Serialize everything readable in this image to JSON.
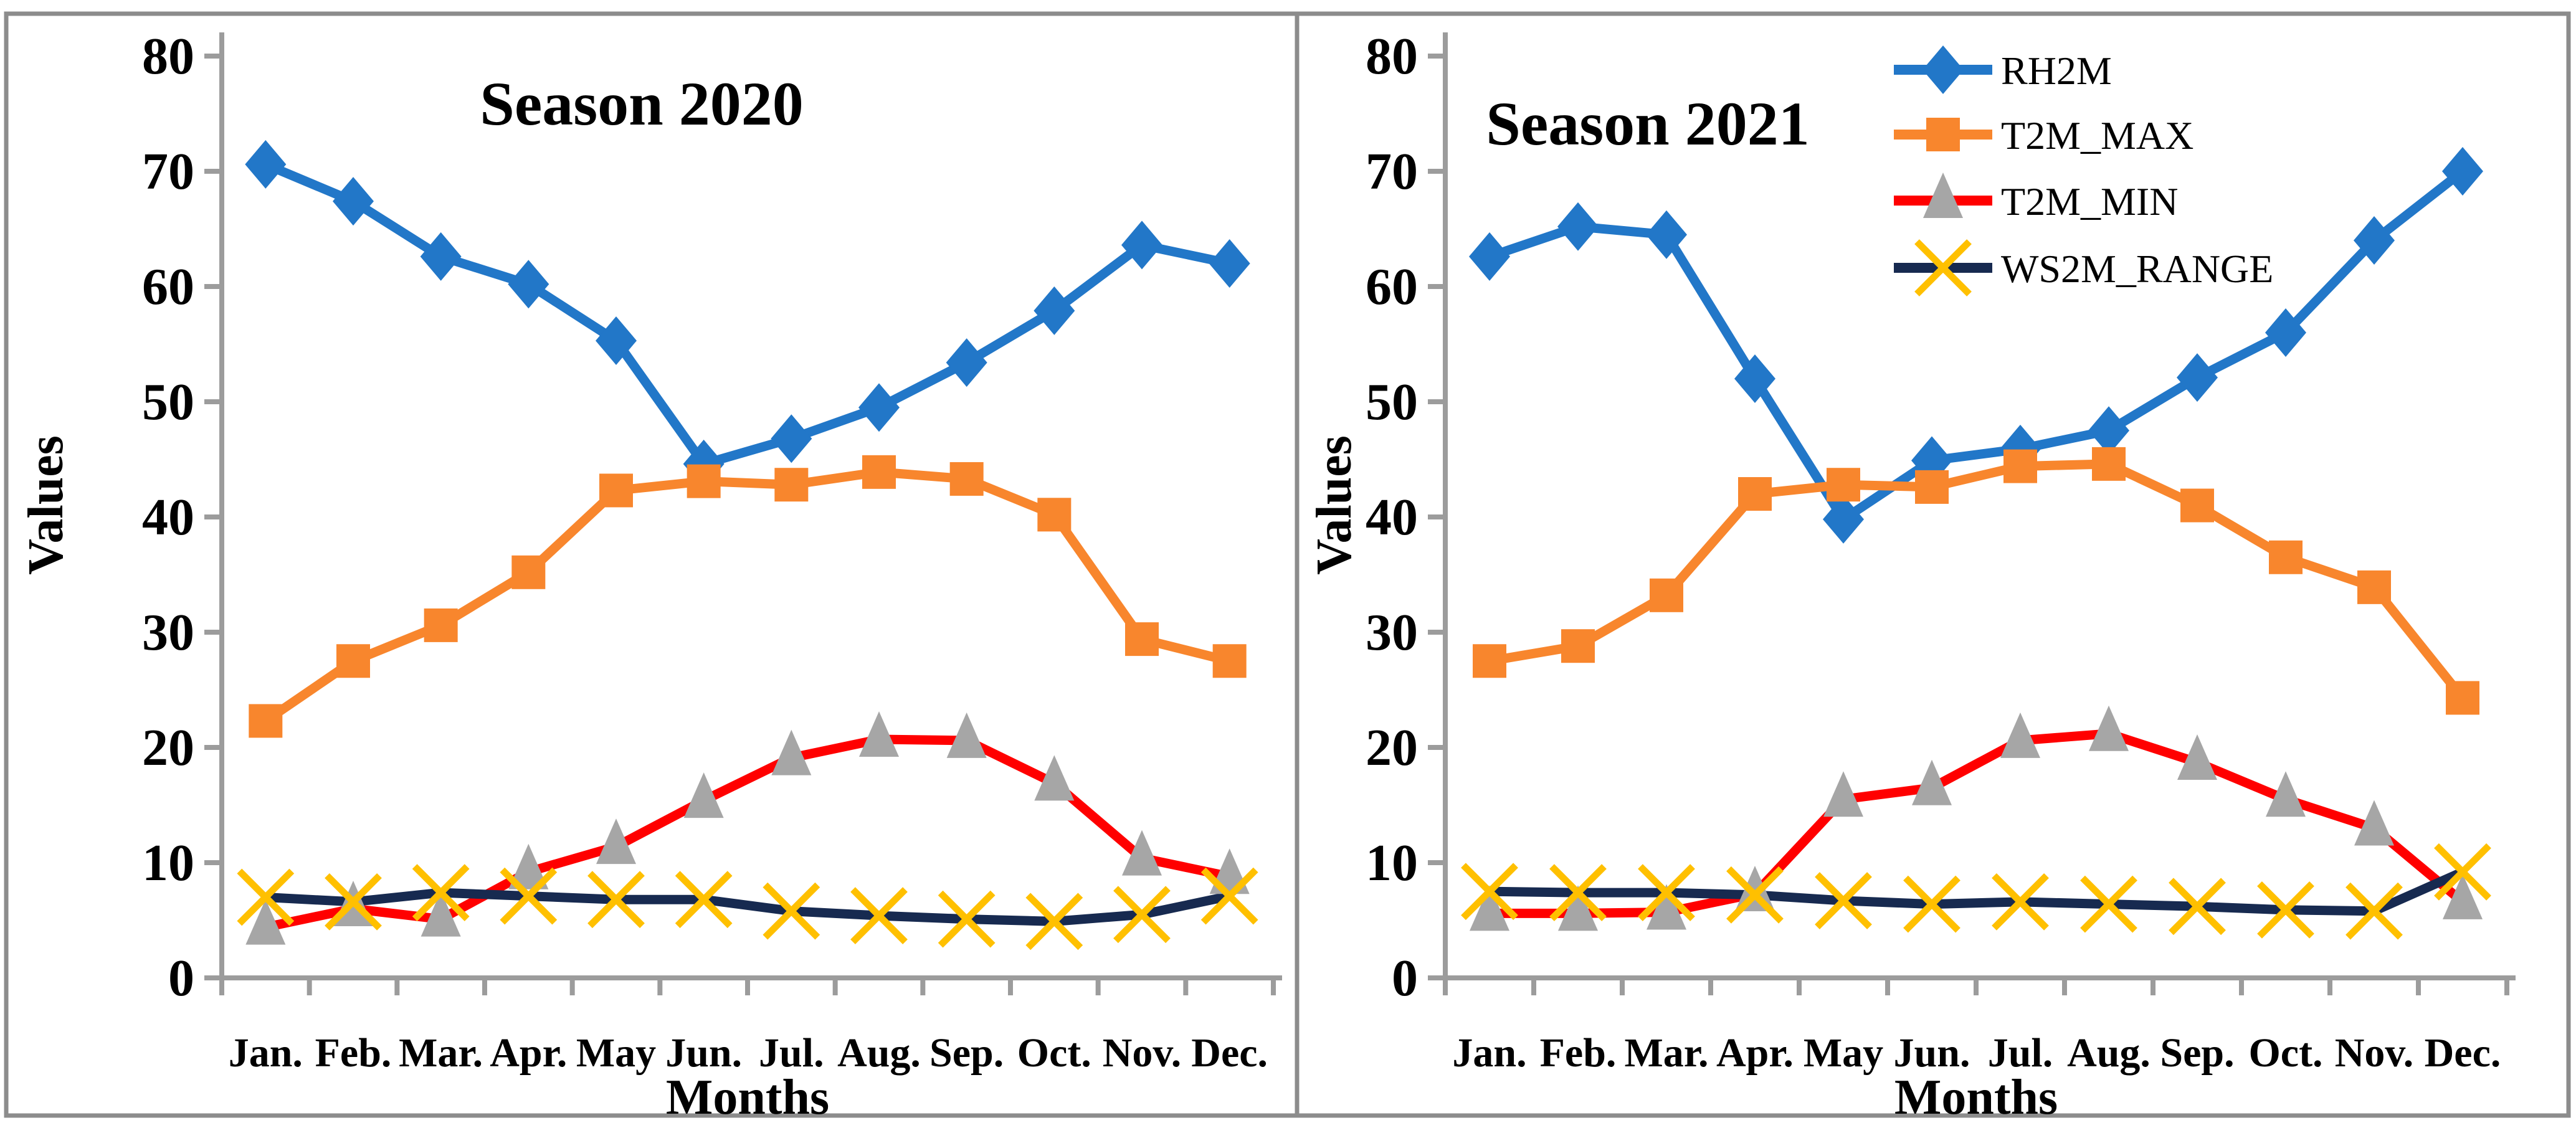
{
  "figure": {
    "background": "#FFFFFF",
    "border_color": "#8C8C8C",
    "divider_color": "#8C8C8C",
    "axis_color": "#9C9C9C",
    "text_color": "#000000"
  },
  "chart_data": [
    {
      "type": "line",
      "title": "Season 2020",
      "xlabel": "Months",
      "ylabel": "Values",
      "ylim": [
        0,
        80
      ],
      "ystep": 10,
      "grid": false,
      "legend": false,
      "y_tick_labels": [
        "0",
        "10",
        "20",
        "30",
        "40",
        "50",
        "60",
        "70",
        "80"
      ],
      "categories": [
        "Jan.",
        "Feb.",
        "Mar.",
        "Apr.",
        "May",
        "Jun.",
        "Jul.",
        "Aug.",
        "Sep.",
        "Oct.",
        "Nov.",
        "Dec."
      ],
      "series": [
        {
          "name": "RH2M",
          "color": "#2277C8",
          "marker": "diamond",
          "marker_color": "#2277C8",
          "values": [
            70.6,
            67.4,
            62.6,
            60.2,
            55.3,
            44.6,
            46.8,
            49.5,
            53.4,
            57.9,
            63.6,
            62.0
          ]
        },
        {
          "name": "T2M_MAX",
          "color": "#F8862D",
          "marker": "square",
          "marker_color": "#F8862D",
          "values": [
            22.3,
            27.5,
            30.6,
            35.2,
            42.3,
            43.1,
            42.8,
            43.9,
            43.3,
            40.2,
            29.4,
            27.5
          ]
        },
        {
          "name": "T2M_MIN",
          "color": "#FF0000",
          "marker": "triangle",
          "marker_color": "#A6A6A6",
          "values": [
            4.4,
            6.0,
            5.1,
            9.2,
            11.4,
            15.4,
            19.1,
            20.7,
            20.6,
            16.9,
            10.4,
            8.8
          ]
        },
        {
          "name": "WS2M_RANGE",
          "color": "#172A50",
          "marker": "x",
          "marker_color": "#FFC000",
          "values": [
            7.0,
            6.6,
            7.4,
            7.1,
            6.8,
            6.8,
            5.8,
            5.4,
            5.1,
            4.9,
            5.5,
            7.1
          ]
        }
      ]
    },
    {
      "type": "line",
      "title": "Season 2021",
      "xlabel": "Months",
      "ylabel": "Values",
      "ylim": [
        0,
        80
      ],
      "ystep": 10,
      "grid": false,
      "legend": true,
      "legend_position": "top-right",
      "y_tick_labels": [
        "0",
        "10",
        "20",
        "30",
        "40",
        "50",
        "60",
        "70",
        "80"
      ],
      "categories": [
        "Jan.",
        "Feb.",
        "Mar.",
        "Apr.",
        "May",
        "Jun.",
        "Jul.",
        "Aug.",
        "Sep.",
        "Oct.",
        "Nov.",
        "Dec."
      ],
      "series": [
        {
          "name": "RH2M",
          "color": "#2277C8",
          "marker": "diamond",
          "marker_color": "#2277C8",
          "values": [
            62.6,
            65.2,
            64.5,
            52.0,
            39.8,
            44.9,
            45.9,
            47.5,
            52.1,
            56.0,
            64.0,
            70.0
          ]
        },
        {
          "name": "T2M_MAX",
          "color": "#F8862D",
          "marker": "square",
          "marker_color": "#F8862D",
          "values": [
            27.5,
            28.8,
            33.2,
            42.0,
            42.8,
            42.6,
            44.4,
            44.6,
            41.0,
            36.5,
            33.9,
            24.3
          ]
        },
        {
          "name": "T2M_MIN",
          "color": "#FF0000",
          "marker": "triangle",
          "marker_color": "#A6A6A6",
          "values": [
            5.6,
            5.6,
            5.7,
            7.3,
            15.5,
            16.5,
            20.6,
            21.2,
            18.7,
            15.5,
            13.0,
            6.6
          ]
        },
        {
          "name": "WS2M_RANGE",
          "color": "#172A50",
          "marker": "x",
          "marker_color": "#FFC000",
          "values": [
            7.5,
            7.4,
            7.4,
            7.2,
            6.7,
            6.4,
            6.6,
            6.4,
            6.2,
            5.9,
            5.8,
            9.2
          ]
        }
      ]
    }
  ],
  "legend_entries": [
    "RH2M",
    "T2M_MAX",
    "T2M_MIN",
    "WS2M_RANGE"
  ]
}
